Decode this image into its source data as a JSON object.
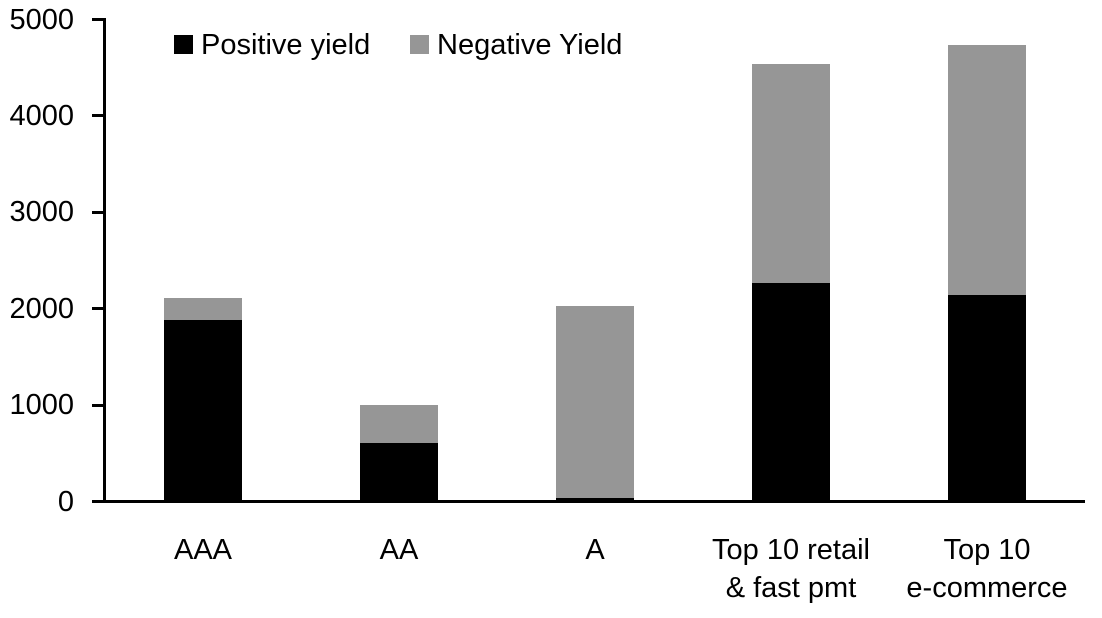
{
  "chart_data": {
    "type": "bar",
    "stacked": true,
    "title": "",
    "xlabel": "",
    "ylabel": "",
    "categories": [
      "AAA",
      "AA",
      "A",
      "Top 10 retail & fast pmt",
      "Top 10 e-commerce"
    ],
    "category_label_lines": [
      [
        "AAA"
      ],
      [
        "AA"
      ],
      [
        "A"
      ],
      [
        "Top 10 retail",
        "& fast pmt"
      ],
      [
        "Top 10",
        "e-commerce"
      ]
    ],
    "series": [
      {
        "name": "Positive yield",
        "color": "#000000",
        "values": [
          1880,
          610,
          40,
          2270,
          2140
        ]
      },
      {
        "name": "Negative Yield",
        "color": "#969696",
        "values": [
          230,
          390,
          1990,
          2270,
          2600
        ]
      }
    ],
    "ylim": [
      0,
      5000
    ],
    "yticks": [
      0,
      1000,
      2000,
      3000,
      4000,
      5000
    ],
    "grid": false,
    "legend_position": "top-left"
  },
  "colors": {
    "axis": "#000000",
    "background": "#ffffff",
    "positive_series": "#000000",
    "negative_series": "#969696"
  }
}
